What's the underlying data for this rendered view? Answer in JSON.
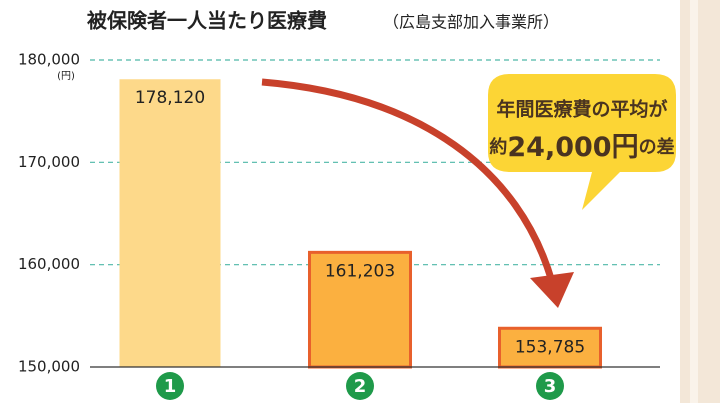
{
  "chart_data": {
    "type": "bar",
    "title": "被保険者一人当たり医療費",
    "subtitle": "（広島支部加入事業所）",
    "y_unit": "(円)",
    "categories": [
      "1",
      "2",
      "3"
    ],
    "values": [
      178120,
      161203,
      153785
    ],
    "value_labels": [
      "178,120",
      "161,203",
      "153,785"
    ],
    "colors": [
      "#fdd98a",
      "#fbb040",
      "#fbb040"
    ],
    "edgecolors": [
      null,
      "#e8602c",
      "#e8602c"
    ],
    "ylim": [
      150000,
      180000
    ],
    "yticks": [
      {
        "value": 150000,
        "label": "150,000"
      },
      {
        "value": 160000,
        "label": "160,000"
      },
      {
        "value": 170000,
        "label": "170,000"
      },
      {
        "value": 180000,
        "label": "180,000"
      }
    ],
    "grid": true,
    "grid_color": "#4db8a8",
    "annotation": {
      "line1": "年間医療費の平均が",
      "line2": [
        "約",
        "24,000円",
        "の差"
      ]
    }
  }
}
